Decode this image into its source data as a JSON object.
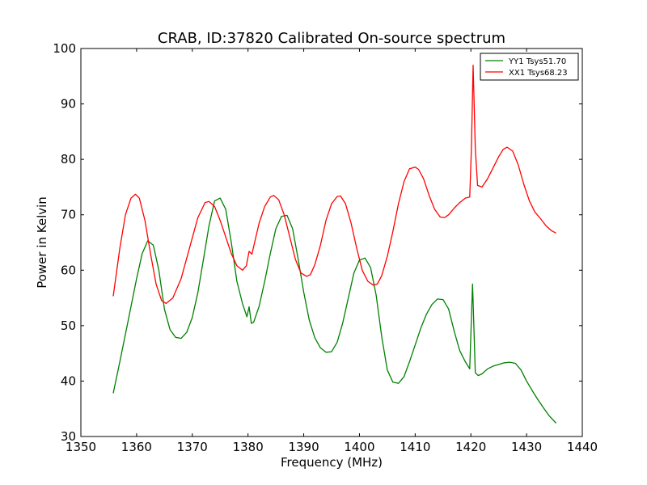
{
  "chart_data": {
    "type": "line",
    "title": "CRAB, ID:37820 Calibrated On-source spectrum",
    "xlabel": "Frequency (MHz)",
    "ylabel": "Power in Kelvin",
    "xlim": [
      1350,
      1440
    ],
    "ylim": [
      30,
      100
    ],
    "xticks": [
      1350,
      1360,
      1370,
      1380,
      1390,
      1400,
      1410,
      1420,
      1430,
      1440
    ],
    "yticks": [
      30,
      40,
      50,
      60,
      70,
      80,
      90,
      100
    ],
    "grid": false,
    "legend_position": "top-right",
    "series": [
      {
        "name": "YY1 Tsys51.70",
        "color": "#008000",
        "x": [
          1355.8,
          1357,
          1358.5,
          1360,
          1361,
          1362,
          1363,
          1364,
          1365,
          1366,
          1367,
          1368,
          1369,
          1370,
          1371,
          1372,
          1373,
          1374,
          1375,
          1376,
          1377,
          1378,
          1379,
          1379.8,
          1380.2,
          1380.6,
          1381,
          1382,
          1383,
          1384,
          1385,
          1386,
          1387,
          1388,
          1389,
          1390,
          1391,
          1392,
          1393,
          1394,
          1395,
          1396,
          1397,
          1398,
          1399,
          1400,
          1401,
          1402,
          1403,
          1404,
          1405,
          1406,
          1407,
          1408,
          1409,
          1410,
          1411,
          1412,
          1413,
          1414,
          1415,
          1416,
          1417,
          1418,
          1419,
          1419.8,
          1420.3,
          1420.8,
          1421.3,
          1422,
          1423,
          1424,
          1425,
          1426,
          1427,
          1428,
          1429,
          1430,
          1431,
          1432,
          1433,
          1434,
          1435.3
        ],
        "values": [
          37.8,
          43.5,
          51,
          58.5,
          63,
          65.3,
          64.5,
          60,
          53,
          49.3,
          47.9,
          47.7,
          48.8,
          51.5,
          56,
          62,
          68,
          72.5,
          73,
          71,
          65,
          58,
          54,
          51.6,
          53.4,
          50.4,
          50.6,
          53.5,
          58,
          63,
          67.5,
          69.7,
          69.9,
          67.5,
          62,
          56,
          51,
          47.8,
          46,
          45.2,
          45.3,
          47,
          50.5,
          55,
          59.5,
          61.8,
          62.2,
          60.5,
          55.5,
          48,
          42,
          39.8,
          39.6,
          40.8,
          43.5,
          46.5,
          49.5,
          52,
          53.8,
          54.8,
          54.7,
          53,
          49,
          45.5,
          43.5,
          42.2,
          57.5,
          41.5,
          41,
          41.3,
          42.2,
          42.7,
          43,
          43.3,
          43.4,
          43.2,
          42,
          40,
          38.3,
          36.7,
          35.2,
          33.8,
          32.4
        ]
      },
      {
        "name": "XX1 Tsys68.23",
        "color": "#ff0000",
        "x": [
          1355.8,
          1357,
          1358,
          1359,
          1359.8,
          1360.5,
          1361.5,
          1362.5,
          1363.5,
          1364.5,
          1365.3,
          1366.5,
          1368,
          1369.5,
          1371,
          1372.3,
          1373,
          1374,
          1375,
          1376,
          1377,
          1378,
          1379,
          1379.7,
          1380.2,
          1380.7,
          1381.3,
          1382,
          1383,
          1384,
          1384.6,
          1385.5,
          1386.5,
          1387.5,
          1388.5,
          1389.5,
          1390.5,
          1391.2,
          1392,
          1393,
          1394,
          1395,
          1396,
          1396.6,
          1397.5,
          1398.5,
          1399.5,
          1400.5,
          1401.5,
          1402.5,
          1403.2,
          1404,
          1405,
          1406,
          1407,
          1408,
          1409,
          1410,
          1410.6,
          1411.5,
          1412.5,
          1413.5,
          1414.5,
          1415.3,
          1416,
          1417,
          1418,
          1419,
          1419.8,
          1420.1,
          1420.4,
          1420.8,
          1421.2,
          1422,
          1423,
          1424,
          1425,
          1425.8,
          1426.5,
          1427.5,
          1428.5,
          1429.5,
          1430.5,
          1431.5,
          1432.5,
          1433.5,
          1434.5,
          1435.3
        ],
        "values": [
          55.3,
          64,
          70,
          73,
          73.7,
          73,
          69,
          63,
          57.5,
          54.5,
          54,
          55,
          58.5,
          64,
          69.5,
          72.2,
          72.4,
          71.5,
          69,
          66,
          63,
          60.8,
          60,
          60.8,
          63.4,
          62.9,
          65.5,
          68.5,
          71.5,
          73.2,
          73.5,
          72.7,
          70,
          66,
          62,
          59.5,
          58.9,
          59.2,
          61,
          64.5,
          69,
          72,
          73.3,
          73.4,
          72,
          68.5,
          64,
          60,
          58,
          57.3,
          57.5,
          59,
          62.5,
          67,
          72,
          76,
          78.3,
          78.6,
          78.2,
          76.5,
          73.5,
          71,
          69.6,
          69.5,
          70,
          71.2,
          72.2,
          73,
          73.2,
          82,
          97,
          82,
          75.3,
          75,
          76.5,
          78.5,
          80.5,
          81.8,
          82.2,
          81.5,
          79,
          75.5,
          72.5,
          70.5,
          69.3,
          68,
          67.1,
          66.7
        ]
      }
    ]
  }
}
